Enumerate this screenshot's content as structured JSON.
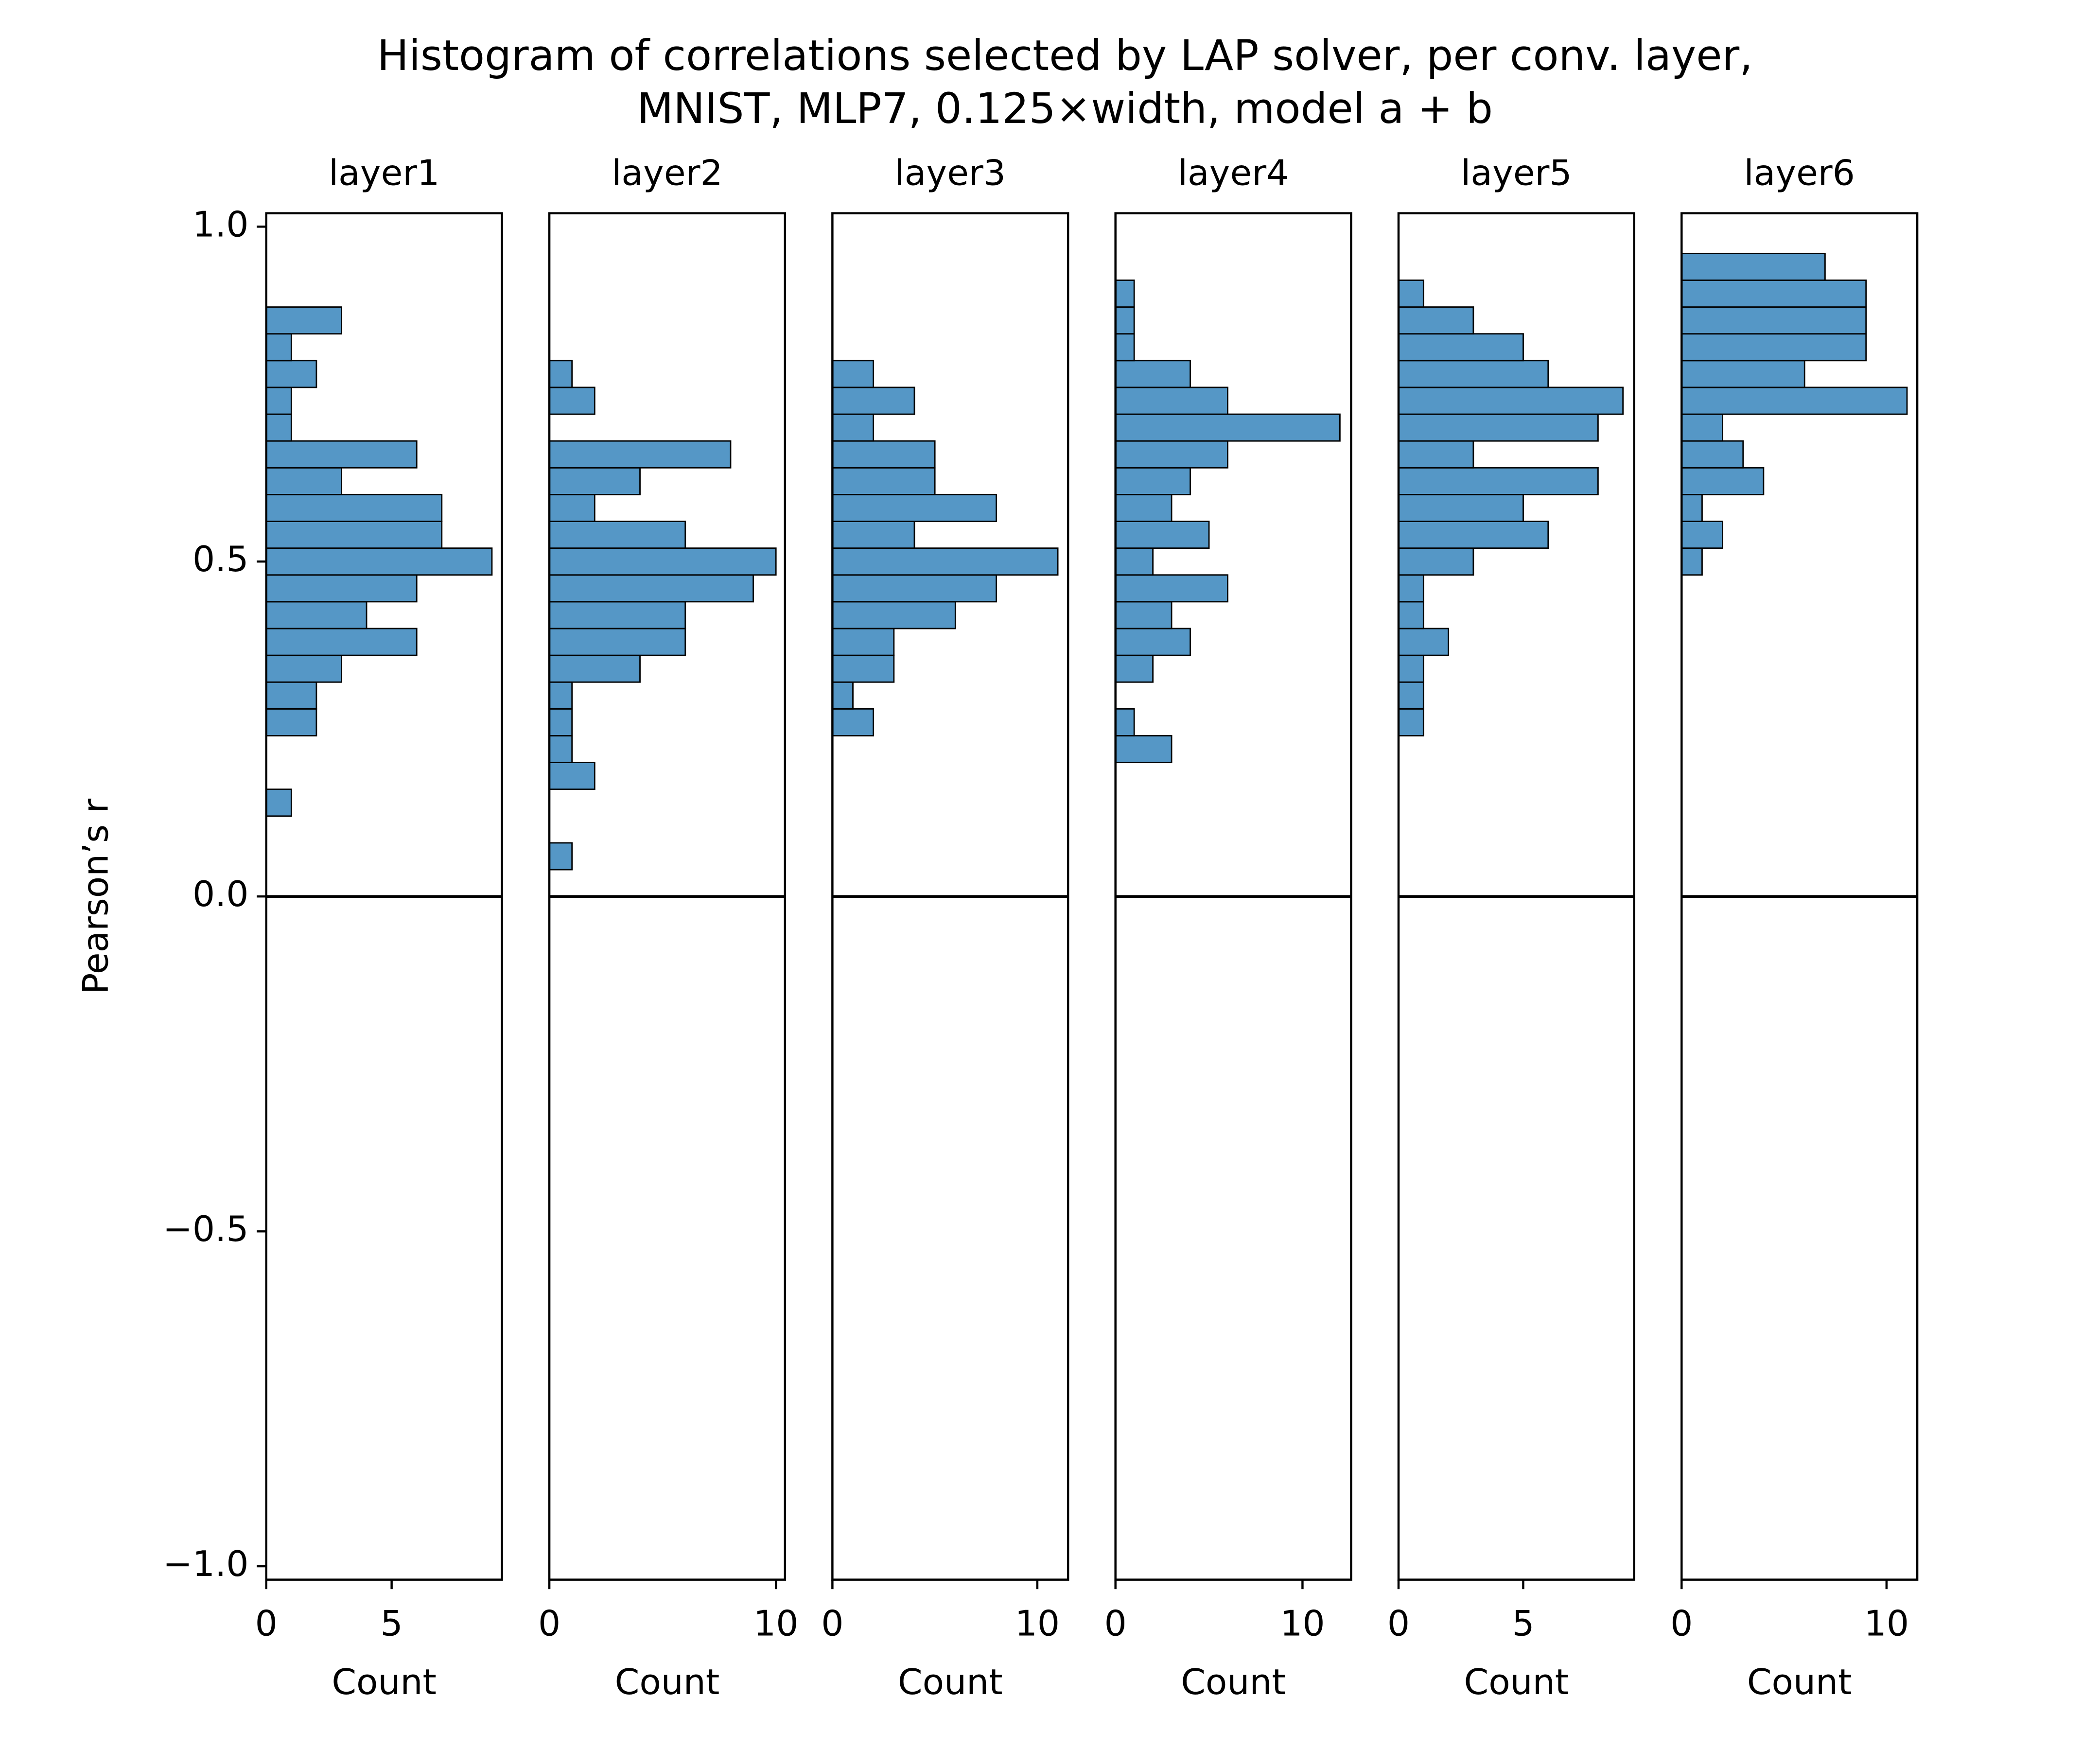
{
  "title": [
    "Histogram of correlations selected by LAP solver, per conv. layer,",
    "MNIST, MLP7, 0.125×width, model a + b"
  ],
  "ylabel": "Pearson’s r",
  "chart_data": [
    {
      "type": "histogram",
      "orientation": "horizontal",
      "title": "layer1",
      "xlabel": "Count",
      "color": "#5597c6",
      "bins": [
        0.12,
        0.16,
        0.2,
        0.24,
        0.28,
        0.32,
        0.36,
        0.4,
        0.44,
        0.48,
        0.52,
        0.56,
        0.6,
        0.64,
        0.68,
        0.72,
        0.76,
        0.8,
        0.84,
        0.88
      ],
      "counts": [
        1,
        0,
        0,
        2,
        2,
        3,
        6,
        4,
        6,
        9,
        7,
        7,
        3,
        6,
        1,
        1,
        2,
        1,
        3
      ],
      "xlim": [
        0,
        9.4
      ],
      "xticks": [
        0,
        5
      ],
      "ylim": [
        -1.02,
        1.02
      ],
      "yticks": [
        {
          "value": -1,
          "label": "−1.0"
        },
        {
          "value": -0.5,
          "label": "−0.5"
        },
        {
          "value": 0,
          "label": "0.0"
        },
        0.5,
        {
          "value": 1,
          "label": "1.0"
        }
      ],
      "hline": 0
    },
    {
      "type": "histogram",
      "orientation": "horizontal",
      "title": "layer2",
      "xlabel": "Count",
      "color": "#5597c6",
      "bins": [
        0.04,
        0.08,
        0.12,
        0.16,
        0.2,
        0.24,
        0.28,
        0.32,
        0.36,
        0.4,
        0.44,
        0.48,
        0.52,
        0.56,
        0.6,
        0.64,
        0.68,
        0.72,
        0.76,
        0.8
      ],
      "counts": [
        1,
        0,
        0,
        2,
        1,
        1,
        1,
        4,
        6,
        6,
        9,
        10,
        6,
        2,
        4,
        8,
        0,
        2,
        1
      ],
      "xlim": [
        0,
        10.4
      ],
      "xticks": [
        0,
        10
      ],
      "ylim": [
        -1.02,
        1.02
      ],
      "hline": 0
    },
    {
      "type": "histogram",
      "orientation": "horizontal",
      "title": "layer3",
      "xlabel": "Count",
      "color": "#5597c6",
      "bins": [
        0.24,
        0.28,
        0.32,
        0.36,
        0.4,
        0.44,
        0.48,
        0.52,
        0.56,
        0.6,
        0.64,
        0.68,
        0.72,
        0.76,
        0.8
      ],
      "counts": [
        2,
        1,
        3,
        3,
        6,
        8,
        11,
        4,
        8,
        5,
        5,
        2,
        4,
        2
      ],
      "xlim": [
        0,
        11.5
      ],
      "xticks": [
        0,
        10
      ],
      "ylim": [
        -1.02,
        1.02
      ],
      "hline": 0
    },
    {
      "type": "histogram",
      "orientation": "horizontal",
      "title": "layer4",
      "xlabel": "Count",
      "color": "#5597c6",
      "bins": [
        0.2,
        0.24,
        0.28,
        0.32,
        0.36,
        0.4,
        0.44,
        0.48,
        0.52,
        0.56,
        0.6,
        0.64,
        0.68,
        0.72,
        0.76,
        0.8,
        0.84,
        0.88,
        0.92
      ],
      "counts": [
        3,
        1,
        0,
        2,
        4,
        3,
        6,
        2,
        5,
        3,
        4,
        6,
        12,
        6,
        4,
        1,
        1,
        1
      ],
      "xlim": [
        0,
        12.6
      ],
      "xticks": [
        0,
        10
      ],
      "ylim": [
        -1.02,
        1.02
      ],
      "hline": 0
    },
    {
      "type": "histogram",
      "orientation": "horizontal",
      "title": "layer5",
      "xlabel": "Count",
      "color": "#5597c6",
      "bins": [
        0.24,
        0.28,
        0.32,
        0.36,
        0.4,
        0.44,
        0.48,
        0.52,
        0.56,
        0.6,
        0.64,
        0.68,
        0.72,
        0.76,
        0.8,
        0.84,
        0.88,
        0.92
      ],
      "counts": [
        1,
        1,
        1,
        2,
        1,
        1,
        3,
        6,
        5,
        8,
        3,
        8,
        9,
        6,
        5,
        3,
        1
      ],
      "xlim": [
        0,
        9.45
      ],
      "xticks": [
        0,
        5
      ],
      "ylim": [
        -1.02,
        1.02
      ],
      "hline": 0
    },
    {
      "type": "histogram",
      "orientation": "horizontal",
      "title": "layer6",
      "xlabel": "Count",
      "color": "#5597c6",
      "bins": [
        0.48,
        0.52,
        0.56,
        0.6,
        0.64,
        0.68,
        0.72,
        0.76,
        0.8,
        0.84,
        0.88,
        0.92,
        0.96
      ],
      "counts": [
        1,
        2,
        1,
        4,
        3,
        2,
        11,
        6,
        9,
        9,
        9,
        7
      ],
      "xlim": [
        0,
        11.5
      ],
      "xticks": [
        0,
        10
      ],
      "ylim": [
        -1.02,
        1.02
      ],
      "hline": 0
    }
  ]
}
